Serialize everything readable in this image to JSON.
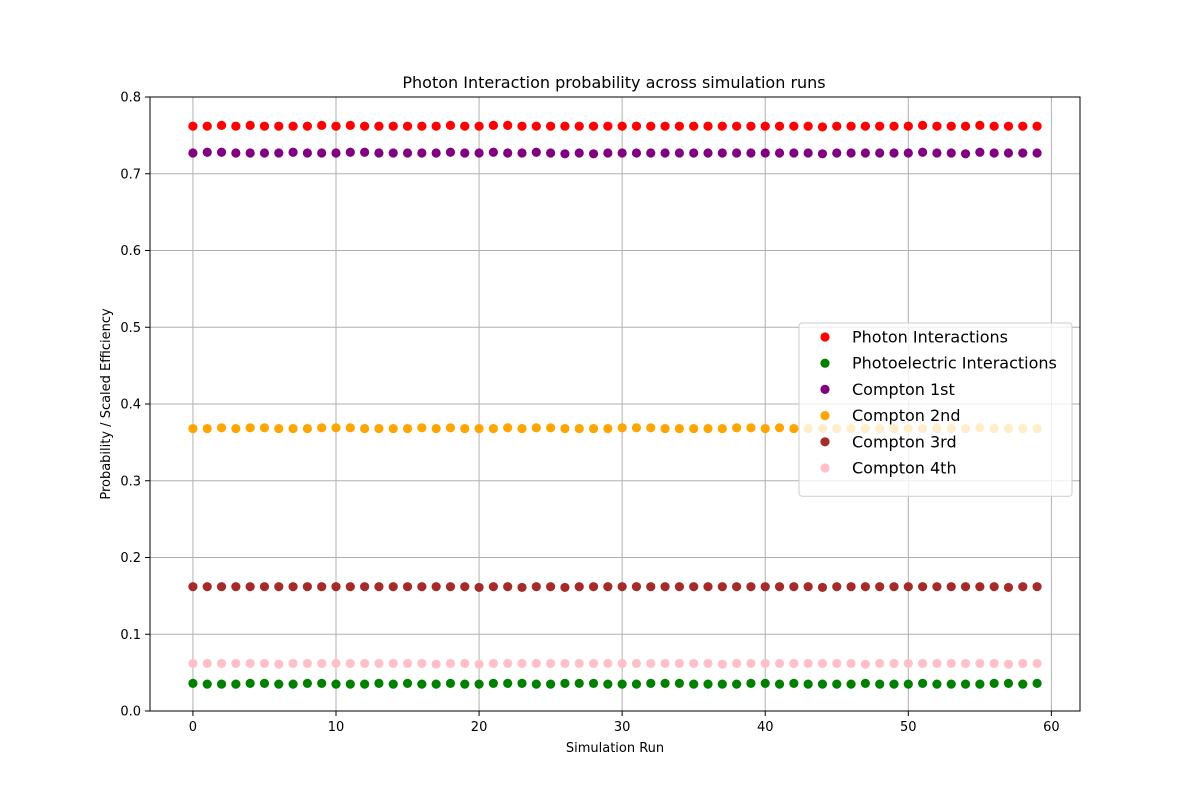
{
  "chart_data": {
    "type": "scatter",
    "title": "Photon Interaction probability across simulation runs",
    "xlabel": "Simulation Run",
    "ylabel": "Probability / Scaled Efficiency",
    "xlim": [
      -3,
      62
    ],
    "ylim": [
      0.0,
      0.8
    ],
    "xticks": [
      "0",
      "10",
      "20",
      "30",
      "40",
      "50",
      "60"
    ],
    "yticks": [
      "0.0",
      "0.1",
      "0.2",
      "0.3",
      "0.4",
      "0.5",
      "0.6",
      "0.7",
      "0.8"
    ],
    "grid": true,
    "legend_position": "center-right",
    "x": [
      0,
      1,
      2,
      3,
      4,
      5,
      6,
      7,
      8,
      9,
      10,
      11,
      12,
      13,
      14,
      15,
      16,
      17,
      18,
      19,
      20,
      21,
      22,
      23,
      24,
      25,
      26,
      27,
      28,
      29,
      30,
      31,
      32,
      33,
      34,
      35,
      36,
      37,
      38,
      39,
      40,
      41,
      42,
      43,
      44,
      45,
      46,
      47,
      48,
      49,
      50,
      51,
      52,
      53,
      54,
      55,
      56,
      57,
      58,
      59
    ],
    "series": [
      {
        "name": "Photon Interactions",
        "color": "#ff0000",
        "values": [
          0.762,
          0.762,
          0.763,
          0.762,
          0.763,
          0.762,
          0.762,
          0.762,
          0.762,
          0.763,
          0.762,
          0.763,
          0.762,
          0.762,
          0.762,
          0.762,
          0.762,
          0.762,
          0.763,
          0.762,
          0.762,
          0.763,
          0.763,
          0.762,
          0.762,
          0.762,
          0.762,
          0.762,
          0.762,
          0.762,
          0.762,
          0.762,
          0.762,
          0.762,
          0.762,
          0.762,
          0.762,
          0.762,
          0.762,
          0.762,
          0.762,
          0.762,
          0.762,
          0.762,
          0.761,
          0.762,
          0.762,
          0.762,
          0.762,
          0.762,
          0.762,
          0.763,
          0.762,
          0.762,
          0.762,
          0.763,
          0.762,
          0.762,
          0.762,
          0.762
        ]
      },
      {
        "name": "Photoelectric Interactions",
        "color": "#008000",
        "values": [
          0.036,
          0.035,
          0.035,
          0.035,
          0.036,
          0.036,
          0.035,
          0.035,
          0.036,
          0.036,
          0.035,
          0.035,
          0.035,
          0.036,
          0.035,
          0.036,
          0.035,
          0.035,
          0.036,
          0.035,
          0.035,
          0.036,
          0.036,
          0.036,
          0.035,
          0.035,
          0.036,
          0.036,
          0.036,
          0.035,
          0.035,
          0.035,
          0.036,
          0.036,
          0.036,
          0.035,
          0.035,
          0.035,
          0.035,
          0.036,
          0.036,
          0.035,
          0.036,
          0.035,
          0.035,
          0.035,
          0.035,
          0.036,
          0.035,
          0.035,
          0.035,
          0.036,
          0.035,
          0.035,
          0.035,
          0.035,
          0.036,
          0.036,
          0.035,
          0.036
        ]
      },
      {
        "name": "Compton 1st",
        "color": "#800080",
        "values": [
          0.727,
          0.728,
          0.728,
          0.727,
          0.727,
          0.727,
          0.727,
          0.728,
          0.727,
          0.727,
          0.727,
          0.728,
          0.728,
          0.727,
          0.727,
          0.727,
          0.727,
          0.727,
          0.728,
          0.727,
          0.727,
          0.728,
          0.727,
          0.727,
          0.728,
          0.727,
          0.726,
          0.727,
          0.726,
          0.727,
          0.727,
          0.727,
          0.727,
          0.727,
          0.727,
          0.727,
          0.727,
          0.727,
          0.727,
          0.727,
          0.727,
          0.727,
          0.727,
          0.727,
          0.726,
          0.727,
          0.727,
          0.727,
          0.727,
          0.727,
          0.727,
          0.728,
          0.727,
          0.727,
          0.726,
          0.728,
          0.727,
          0.727,
          0.727,
          0.727
        ]
      },
      {
        "name": "Compton 2nd",
        "color": "#ffa500",
        "values": [
          0.368,
          0.368,
          0.369,
          0.368,
          0.369,
          0.369,
          0.368,
          0.368,
          0.368,
          0.369,
          0.369,
          0.369,
          0.368,
          0.368,
          0.368,
          0.368,
          0.369,
          0.368,
          0.369,
          0.368,
          0.368,
          0.368,
          0.369,
          0.368,
          0.369,
          0.369,
          0.368,
          0.368,
          0.368,
          0.368,
          0.369,
          0.369,
          0.369,
          0.368,
          0.368,
          0.368,
          0.368,
          0.368,
          0.369,
          0.369,
          0.368,
          0.369,
          0.368,
          0.368,
          0.368,
          0.368,
          0.368,
          0.368,
          0.368,
          0.368,
          0.368,
          0.368,
          0.368,
          0.368,
          0.368,
          0.369,
          0.368,
          0.368,
          0.368,
          0.368
        ]
      },
      {
        "name": "Compton 3rd",
        "color": "#a52a2a",
        "values": [
          0.162,
          0.162,
          0.162,
          0.162,
          0.162,
          0.162,
          0.162,
          0.162,
          0.162,
          0.162,
          0.162,
          0.162,
          0.162,
          0.162,
          0.162,
          0.162,
          0.162,
          0.162,
          0.162,
          0.162,
          0.161,
          0.162,
          0.162,
          0.161,
          0.162,
          0.162,
          0.161,
          0.162,
          0.162,
          0.162,
          0.162,
          0.162,
          0.162,
          0.162,
          0.162,
          0.162,
          0.162,
          0.162,
          0.162,
          0.162,
          0.162,
          0.162,
          0.162,
          0.162,
          0.161,
          0.162,
          0.162,
          0.162,
          0.162,
          0.162,
          0.162,
          0.162,
          0.162,
          0.162,
          0.162,
          0.162,
          0.162,
          0.161,
          0.162,
          0.162
        ]
      },
      {
        "name": "Compton 4th",
        "color": "#ffc0cb",
        "values": [
          0.062,
          0.062,
          0.062,
          0.062,
          0.062,
          0.062,
          0.061,
          0.062,
          0.062,
          0.062,
          0.062,
          0.062,
          0.062,
          0.062,
          0.062,
          0.062,
          0.062,
          0.061,
          0.062,
          0.062,
          0.061,
          0.062,
          0.062,
          0.062,
          0.062,
          0.062,
          0.062,
          0.062,
          0.062,
          0.062,
          0.062,
          0.062,
          0.062,
          0.062,
          0.062,
          0.062,
          0.062,
          0.061,
          0.062,
          0.062,
          0.062,
          0.062,
          0.062,
          0.062,
          0.062,
          0.062,
          0.062,
          0.061,
          0.062,
          0.062,
          0.062,
          0.062,
          0.062,
          0.062,
          0.062,
          0.062,
          0.062,
          0.061,
          0.062,
          0.062
        ]
      }
    ]
  }
}
